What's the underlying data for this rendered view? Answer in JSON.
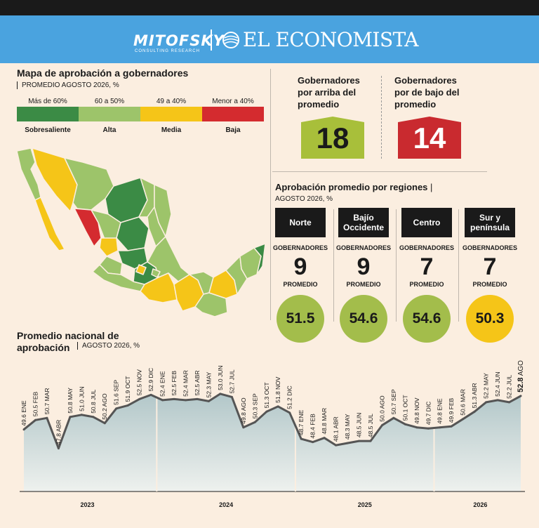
{
  "header": {
    "brand1": "MITOFSKY",
    "brand1_tagline": "CONSULTING RESEARCH",
    "brand2": "EL ECONOMISTA"
  },
  "map": {
    "title": "Mapa de aprobación a gobernadores",
    "subtitle": "PROMEDIO AGOSTO 2026, %",
    "legend": [
      {
        "range": "Más de 60%",
        "label": "Sobresaliente",
        "color": "#3b8b45"
      },
      {
        "range": "60 a 50%",
        "label": "Alta",
        "color": "#9dc46a"
      },
      {
        "range": "49 a 40%",
        "label": "Media",
        "color": "#f5c518"
      },
      {
        "range": "Menor a 40%",
        "label": "Baja",
        "color": "#d42b2f"
      }
    ]
  },
  "gov": {
    "above_label": "Gobernadores por arriba del promedio",
    "above_value": "18",
    "below_label": "Gobernadores por de bajo del promedio",
    "below_value": "14",
    "above_color": "#a8bf3a",
    "below_color": "#c92a2f"
  },
  "regions": {
    "title": "Aprobación promedio por regiones",
    "subtitle": "AGOSTO 2026, %",
    "gov_label": "GOBERNADORES",
    "avg_label": "PROMEDIO",
    "items": [
      {
        "name": "Norte",
        "governors": "9",
        "average": "51.5",
        "color": "#a3bd4b"
      },
      {
        "name": "Bajío Occidente",
        "governors": "9",
        "average": "54.6",
        "color": "#a3bd4b"
      },
      {
        "name": "Centro",
        "governors": "7",
        "average": "54.6",
        "color": "#a3bd4b"
      },
      {
        "name": "Sur y península",
        "governors": "7",
        "average": "50.3",
        "color": "#f5c518"
      }
    ]
  },
  "national": {
    "title": "Promedio nacional de aprobación",
    "subtitle": "AGOSTO 2026, %"
  },
  "chart_data": {
    "type": "area",
    "title": "Promedio nacional de aprobación",
    "subtitle": "AGOSTO 2026, %",
    "x": [
      "ENE",
      "FEB",
      "MAR",
      "ABR",
      "MAY",
      "JUN",
      "JUL",
      "AGO",
      "SEP",
      "OCT",
      "NOV",
      "DIC",
      "ENE",
      "FEB",
      "MAR",
      "ABR",
      "MAY",
      "JUN",
      "JUL",
      "AGO",
      "SEP",
      "OCT",
      "NOV",
      "DIC",
      "ENE",
      "FEB",
      "MAR",
      "ABR",
      "MAY",
      "JUN",
      "JUL",
      "AGO",
      "SEP",
      "OCT",
      "NOV",
      "DIC",
      "ENE",
      "FEB",
      "MAR",
      "ABR",
      "MAY",
      "JUN",
      "JUL",
      "AGO"
    ],
    "values": [
      49.6,
      50.5,
      50.7,
      47.8,
      50.8,
      51.0,
      50.8,
      50.2,
      51.6,
      51.9,
      52.5,
      52.9,
      52.4,
      52.5,
      52.4,
      52.5,
      52.3,
      53.0,
      52.7,
      49.8,
      50.3,
      51.3,
      51.8,
      51.2,
      48.7,
      48.4,
      48.8,
      48.1,
      48.3,
      48.5,
      48.5,
      50.0,
      50.7,
      50.1,
      49.8,
      49.7,
      49.8,
      49.9,
      50.6,
      51.3,
      52.2,
      52.4,
      52.2,
      52.8
    ],
    "years": [
      "2023",
      "2024",
      "2025",
      "2026"
    ],
    "ylim": [
      46.5,
      54
    ],
    "grid": false,
    "colors": {
      "line": "#555555",
      "area_top": "#b2c7c9",
      "area_bottom": "#eef1ee"
    }
  }
}
